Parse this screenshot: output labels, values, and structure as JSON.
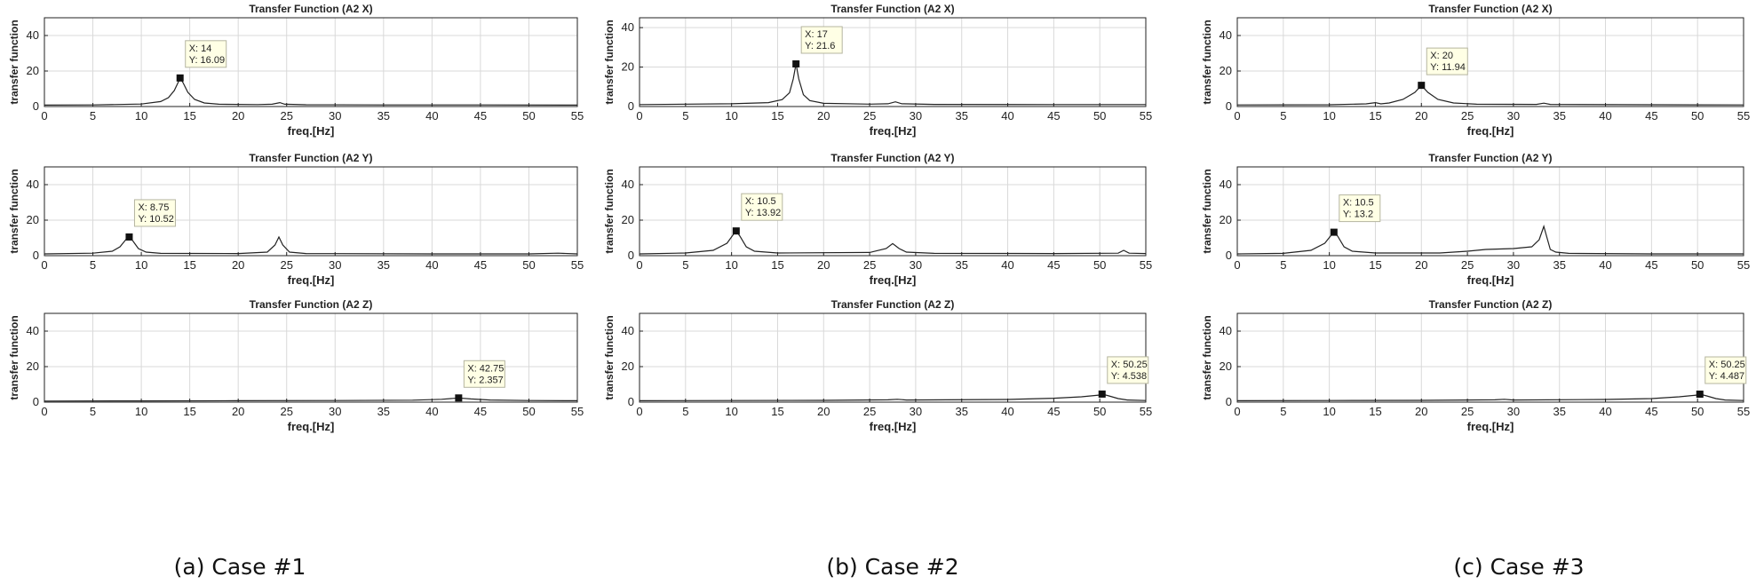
{
  "figure": {
    "captions": [
      "(a) Case #1",
      "(b) Case #2",
      "(c) Case #3"
    ]
  },
  "colors": {
    "line": "#222222",
    "grid": "#d9d9d9",
    "datatip_bg": "#ffffe5",
    "axis": "#222222"
  },
  "chart_data": [
    {
      "type": "line",
      "column": 0,
      "row": 0,
      "title": "Transfer Function (A2 X)",
      "xlabel": "freq.[Hz]",
      "ylabel": "transfer function",
      "xlim": [
        0,
        55
      ],
      "ylim": [
        0,
        50
      ],
      "xticks": [
        0,
        5,
        10,
        15,
        20,
        25,
        30,
        35,
        40,
        45,
        50,
        55
      ],
      "yticks": [
        0,
        20,
        40
      ],
      "grid": true,
      "baseline": [
        [
          0,
          0.8
        ],
        [
          5,
          0.9
        ],
        [
          10,
          1.4
        ],
        [
          12,
          2.8
        ],
        [
          12.8,
          5
        ],
        [
          13.4,
          9
        ],
        [
          13.8,
          13.5
        ],
        [
          14,
          16.09
        ],
        [
          14.3,
          13.5
        ],
        [
          14.8,
          8
        ],
        [
          15.5,
          4
        ],
        [
          16.5,
          2
        ],
        [
          18,
          1.3
        ],
        [
          22,
          1.1
        ],
        [
          23.5,
          1.3
        ],
        [
          24.3,
          2.2
        ],
        [
          24.8,
          1.3
        ],
        [
          27,
          1
        ],
        [
          35,
          0.9
        ],
        [
          45,
          0.9
        ],
        [
          55,
          0.8
        ]
      ],
      "peaks": [],
      "datatip": {
        "x": 14,
        "y": 16.09,
        "label_x": "X: 14",
        "label_y": "Y: 16.09"
      }
    },
    {
      "type": "line",
      "column": 1,
      "row": 0,
      "title": "Transfer Function (A2 X)",
      "xlabel": "freq.[Hz]",
      "ylabel": "transfer function",
      "xlim": [
        0,
        55
      ],
      "ylim": [
        0,
        45
      ],
      "xticks": [
        0,
        5,
        10,
        15,
        20,
        25,
        30,
        35,
        40,
        45,
        50,
        55
      ],
      "yticks": [
        0,
        20,
        40
      ],
      "grid": true,
      "baseline": [
        [
          0,
          1
        ],
        [
          10,
          1.4
        ],
        [
          14,
          2
        ],
        [
          15.5,
          3.5
        ],
        [
          16.3,
          7
        ],
        [
          16.7,
          14
        ],
        [
          17,
          21.6
        ],
        [
          17.3,
          14
        ],
        [
          17.8,
          6
        ],
        [
          18.5,
          3
        ],
        [
          20,
          1.6
        ],
        [
          25,
          1.2
        ],
        [
          27,
          1.4
        ],
        [
          27.8,
          2.4
        ],
        [
          28.5,
          1.4
        ],
        [
          32,
          1.1
        ],
        [
          45,
          1
        ],
        [
          55,
          1
        ]
      ],
      "peaks": [],
      "datatip": {
        "x": 17,
        "y": 21.6,
        "label_x": "X: 17",
        "label_y": "Y: 21.6"
      }
    },
    {
      "type": "line",
      "column": 2,
      "row": 0,
      "title": "Transfer Function (A2 X)",
      "xlabel": "freq.[Hz]",
      "ylabel": "transfer function",
      "xlim": [
        0,
        55
      ],
      "ylim": [
        0,
        50
      ],
      "xticks": [
        0,
        5,
        10,
        15,
        20,
        25,
        30,
        35,
        40,
        45,
        50,
        55
      ],
      "yticks": [
        0,
        20,
        40
      ],
      "grid": true,
      "baseline": [
        [
          0,
          0.9
        ],
        [
          10,
          1
        ],
        [
          14,
          1.5
        ],
        [
          15,
          2.2
        ],
        [
          15.6,
          1.5
        ],
        [
          16.5,
          2
        ],
        [
          18,
          4
        ],
        [
          19.3,
          8
        ],
        [
          20,
          11.94
        ],
        [
          20.7,
          8
        ],
        [
          21.8,
          4
        ],
        [
          23.5,
          2
        ],
        [
          26,
          1.3
        ],
        [
          32.5,
          1.2
        ],
        [
          33.3,
          1.9
        ],
        [
          34,
          1.2
        ],
        [
          45,
          1
        ],
        [
          55,
          0.9
        ]
      ],
      "peaks": [],
      "datatip": {
        "x": 20,
        "y": 11.94,
        "label_x": "X: 20",
        "label_y": "Y: 11.94"
      }
    },
    {
      "type": "line",
      "column": 0,
      "row": 1,
      "title": "Transfer Function (A2 Y)",
      "xlabel": "freq.[Hz]",
      "ylabel": "transfer function",
      "xlim": [
        0,
        55
      ],
      "ylim": [
        0,
        50
      ],
      "xticks": [
        0,
        5,
        10,
        15,
        20,
        25,
        30,
        35,
        40,
        45,
        50,
        55
      ],
      "yticks": [
        0,
        20,
        40
      ],
      "grid": true,
      "baseline": [
        [
          0,
          1
        ],
        [
          5,
          1.4
        ],
        [
          7,
          2.5
        ],
        [
          7.8,
          5
        ],
        [
          8.4,
          9
        ],
        [
          8.75,
          10.52
        ],
        [
          9.1,
          8.5
        ],
        [
          9.7,
          4
        ],
        [
          10.5,
          2
        ],
        [
          12,
          1.3
        ],
        [
          20,
          1.2
        ],
        [
          23,
          2
        ],
        [
          23.8,
          6
        ],
        [
          24.2,
          10.5
        ],
        [
          24.6,
          6
        ],
        [
          25.3,
          2
        ],
        [
          27,
          1.2
        ],
        [
          40,
          1
        ],
        [
          50,
          1
        ],
        [
          53,
          1.4
        ],
        [
          55,
          1
        ]
      ],
      "peaks": [],
      "datatip": {
        "x": 8.75,
        "y": 10.52,
        "label_x": "X: 8.75",
        "label_y": "Y: 10.52"
      }
    },
    {
      "type": "line",
      "column": 1,
      "row": 1,
      "title": "Transfer Function (A2 Y)",
      "xlabel": "freq.[Hz]",
      "ylabel": "transfer function",
      "xlim": [
        0,
        55
      ],
      "ylim": [
        0,
        50
      ],
      "xticks": [
        0,
        5,
        10,
        15,
        20,
        25,
        30,
        35,
        40,
        45,
        50,
        55
      ],
      "yticks": [
        0,
        20,
        40
      ],
      "grid": true,
      "baseline": [
        [
          0,
          1
        ],
        [
          5,
          1.5
        ],
        [
          8,
          3
        ],
        [
          9.5,
          7
        ],
        [
          10.2,
          12
        ],
        [
          10.5,
          13.92
        ],
        [
          10.9,
          11
        ],
        [
          11.6,
          5
        ],
        [
          12.5,
          2.5
        ],
        [
          15,
          1.5
        ],
        [
          25,
          1.8
        ],
        [
          26.8,
          4
        ],
        [
          27.5,
          6.8
        ],
        [
          28.2,
          4
        ],
        [
          29,
          2
        ],
        [
          32,
          1.3
        ],
        [
          45,
          1.2
        ],
        [
          52,
          1.4
        ],
        [
          52.6,
          3
        ],
        [
          53.2,
          1.4
        ],
        [
          55,
          1.2
        ]
      ],
      "peaks": [],
      "datatip": {
        "x": 10.5,
        "y": 13.92,
        "label_x": "X: 10.5",
        "label_y": "Y: 13.92"
      }
    },
    {
      "type": "line",
      "column": 2,
      "row": 1,
      "title": "Transfer Function (A2 Y)",
      "xlabel": "freq.[Hz]",
      "ylabel": "transfer function",
      "xlim": [
        0,
        55
      ],
      "ylim": [
        0,
        50
      ],
      "xticks": [
        0,
        5,
        10,
        15,
        20,
        25,
        30,
        35,
        40,
        45,
        50,
        55
      ],
      "yticks": [
        0,
        20,
        40
      ],
      "grid": true,
      "baseline": [
        [
          0,
          1
        ],
        [
          5,
          1.3
        ],
        [
          8,
          3
        ],
        [
          9.5,
          7
        ],
        [
          10.2,
          11.5
        ],
        [
          10.5,
          13.2
        ],
        [
          10.9,
          11
        ],
        [
          11.6,
          5
        ],
        [
          12.5,
          2.5
        ],
        [
          15,
          1.5
        ],
        [
          22,
          1.5
        ],
        [
          25,
          2.5
        ],
        [
          27,
          3.5
        ],
        [
          30,
          4
        ],
        [
          32,
          5
        ],
        [
          32.8,
          9
        ],
        [
          33.3,
          16.5
        ],
        [
          33.7,
          9
        ],
        [
          34,
          3.5
        ],
        [
          34.6,
          2
        ],
        [
          36,
          1.3
        ],
        [
          45,
          1
        ],
        [
          55,
          1
        ]
      ],
      "peaks": [],
      "datatip": {
        "x": 10.5,
        "y": 13.2,
        "label_x": "X: 10.5",
        "label_y": "Y: 13.2"
      }
    },
    {
      "type": "line",
      "column": 0,
      "row": 2,
      "title": "Transfer Function (A2 Z)",
      "xlabel": "freq.[Hz]",
      "ylabel": "transfer function",
      "xlim": [
        0,
        55
      ],
      "ylim": [
        0,
        50
      ],
      "xticks": [
        0,
        5,
        10,
        15,
        20,
        25,
        30,
        35,
        40,
        45,
        50,
        55
      ],
      "yticks": [
        0,
        20,
        40
      ],
      "grid": true,
      "baseline": [
        [
          0,
          0.6
        ],
        [
          10,
          0.7
        ],
        [
          20,
          0.8
        ],
        [
          30,
          0.9
        ],
        [
          38,
          1.1
        ],
        [
          41,
          1.6
        ],
        [
          42.75,
          2.357
        ],
        [
          44,
          1.8
        ],
        [
          46,
          1.2
        ],
        [
          50,
          0.9
        ],
        [
          55,
          0.8
        ]
      ],
      "peaks": [],
      "datatip": {
        "x": 42.75,
        "y": 2.357,
        "label_x": "X: 42.75",
        "label_y": "Y: 2.357"
      }
    },
    {
      "type": "line",
      "column": 1,
      "row": 2,
      "title": "Transfer Function (A2 Z)",
      "xlabel": "freq.[Hz]",
      "ylabel": "transfer function",
      "xlim": [
        0,
        55
      ],
      "ylim": [
        0,
        50
      ],
      "xticks": [
        0,
        5,
        10,
        15,
        20,
        25,
        30,
        35,
        40,
        45,
        50,
        55
      ],
      "yticks": [
        0,
        20,
        40
      ],
      "grid": true,
      "baseline": [
        [
          0,
          0.8
        ],
        [
          10,
          0.9
        ],
        [
          20,
          1
        ],
        [
          27,
          1.3
        ],
        [
          28,
          1.6
        ],
        [
          29,
          1.2
        ],
        [
          40,
          1.5
        ],
        [
          45,
          2.2
        ],
        [
          48,
          3
        ],
        [
          50,
          4
        ],
        [
          50.25,
          4.538
        ],
        [
          51,
          3.5
        ],
        [
          52,
          2
        ],
        [
          53,
          1.2
        ],
        [
          55,
          0.9
        ]
      ],
      "peaks": [],
      "datatip": {
        "x": 50.25,
        "y": 4.538,
        "label_x": "X: 50.25",
        "label_y": "Y: 4.538"
      }
    },
    {
      "type": "line",
      "column": 2,
      "row": 2,
      "title": "Transfer Function (A2 Z)",
      "xlabel": "freq.[Hz]",
      "ylabel": "transfer function",
      "xlim": [
        0,
        55
      ],
      "ylim": [
        0,
        50
      ],
      "xticks": [
        0,
        5,
        10,
        15,
        20,
        25,
        30,
        35,
        40,
        45,
        50,
        55
      ],
      "yticks": [
        0,
        20,
        40
      ],
      "grid": true,
      "baseline": [
        [
          0,
          0.8
        ],
        [
          10,
          0.9
        ],
        [
          20,
          1
        ],
        [
          28,
          1.3
        ],
        [
          29,
          1.6
        ],
        [
          30,
          1.2
        ],
        [
          40,
          1.5
        ],
        [
          45,
          2
        ],
        [
          48,
          3
        ],
        [
          50,
          4
        ],
        [
          50.25,
          4.487
        ],
        [
          51,
          3.5
        ],
        [
          52,
          2
        ],
        [
          53,
          1.2
        ],
        [
          55,
          0.9
        ]
      ],
      "peaks": [],
      "datatip": {
        "x": 50.25,
        "y": 4.487,
        "label_x": "X: 50.25",
        "label_y": "Y: 4.487"
      }
    }
  ]
}
